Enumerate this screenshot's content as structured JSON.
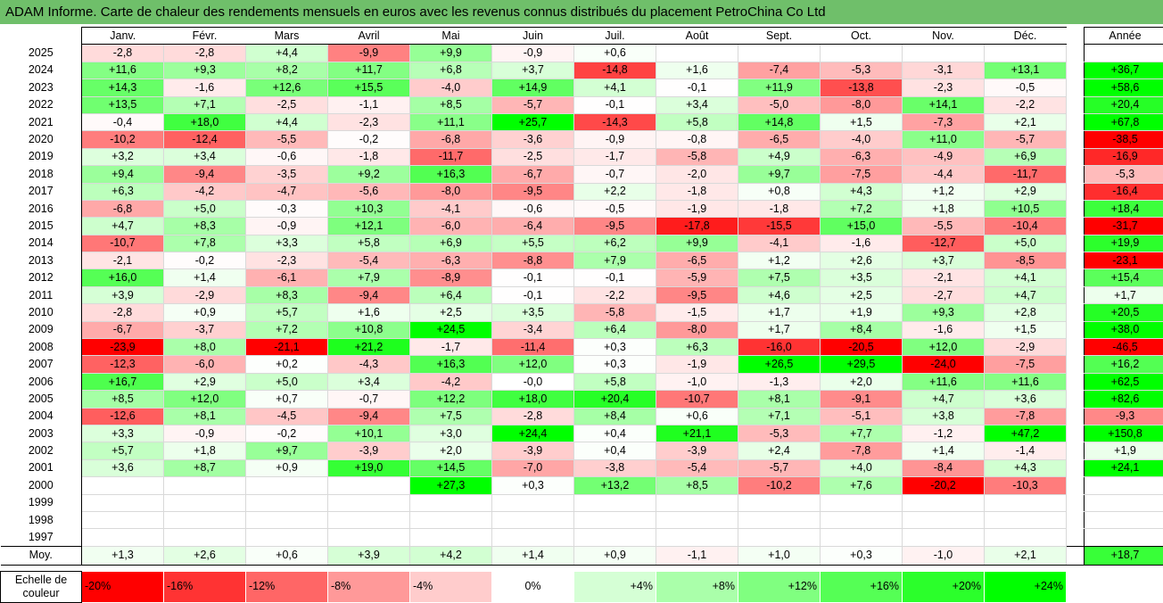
{
  "title": "ADAM Informe. Carte de chaleur des rendements mensuels en euros avec les revenus connus distribués du placement PetroChina Co Ltd",
  "chart_data": {
    "type": "heatmap",
    "title": "ADAM Informe. Carte de chaleur des rendements mensuels en euros avec les revenus connus distribués du placement PetroChina Co Ltd",
    "columns": [
      "Janv.",
      "Févr.",
      "Mars",
      "Avril",
      "Mai",
      "Juin",
      "Juil.",
      "Août",
      "Sept.",
      "Oct.",
      "Nov.",
      "Déc."
    ],
    "annual_label": "Année",
    "rows": [
      {
        "year": "2025",
        "values": [
          "-2,8",
          "-2,8",
          "+4,4",
          "-9,9",
          "+9,9",
          "-0,9",
          "+0,6",
          "",
          "",
          "",
          "",
          ""
        ],
        "annual": ""
      },
      {
        "year": "2024",
        "values": [
          "+11,6",
          "+9,3",
          "+8,2",
          "+11,7",
          "+6,8",
          "+3,7",
          "-14,8",
          "+1,6",
          "-7,4",
          "-5,3",
          "-3,1",
          "+13,1"
        ],
        "annual": "+36,7"
      },
      {
        "year": "2023",
        "values": [
          "+14,3",
          "-1,6",
          "+12,6",
          "+15,5",
          "-4,0",
          "+14,9",
          "+4,1",
          "-0,1",
          "+11,9",
          "-13,8",
          "-2,3",
          "-0,5"
        ],
        "annual": "+58,6"
      },
      {
        "year": "2022",
        "values": [
          "+13,5",
          "+7,1",
          "-2,5",
          "-1,1",
          "+8,5",
          "-5,7",
          "-0,1",
          "+3,4",
          "-5,0",
          "-8,0",
          "+14,1",
          "-2,2"
        ],
        "annual": "+20,4"
      },
      {
        "year": "2021",
        "values": [
          "-0,4",
          "+18,0",
          "+4,4",
          "-2,3",
          "+11,1",
          "+25,7",
          "-14,3",
          "+5,8",
          "+14,8",
          "+1,5",
          "-7,3",
          "+2,1"
        ],
        "annual": "+67,8"
      },
      {
        "year": "2020",
        "values": [
          "-10,2",
          "-12,4",
          "-5,5",
          "-0,2",
          "-6,8",
          "-3,6",
          "-0,9",
          "-0,8",
          "-6,5",
          "-4,0",
          "+11,0",
          "-5,7"
        ],
        "annual": "-38,5"
      },
      {
        "year": "2019",
        "values": [
          "+3,2",
          "+3,4",
          "-0,6",
          "-1,8",
          "-11,7",
          "-2,5",
          "-1,7",
          "-5,8",
          "+4,9",
          "-6,3",
          "-4,9",
          "+6,9"
        ],
        "annual": "-16,9"
      },
      {
        "year": "2018",
        "values": [
          "+9,4",
          "-9,4",
          "-3,5",
          "+9,2",
          "+16,3",
          "-6,7",
          "-0,7",
          "-2,0",
          "+9,7",
          "-7,5",
          "-4,4",
          "-11,7"
        ],
        "annual": "-5,3"
      },
      {
        "year": "2017",
        "values": [
          "+6,3",
          "-4,2",
          "-4,7",
          "-5,6",
          "-8,0",
          "-9,5",
          "+2,2",
          "-1,8",
          "+0,8",
          "+4,3",
          "+1,2",
          "+2,9"
        ],
        "annual": "-16,4"
      },
      {
        "year": "2016",
        "values": [
          "-6,8",
          "+5,0",
          "-0,3",
          "+10,3",
          "-4,1",
          "-0,6",
          "-0,5",
          "-1,9",
          "-1,8",
          "+7,2",
          "+1,8",
          "+10,5"
        ],
        "annual": "+18,4"
      },
      {
        "year": "2015",
        "values": [
          "+4,7",
          "+8,3",
          "-0,9",
          "+12,1",
          "-6,0",
          "-6,4",
          "-9,5",
          "-17,8",
          "-15,5",
          "+15,0",
          "-5,5",
          "-10,4"
        ],
        "annual": "-31,7"
      },
      {
        "year": "2014",
        "values": [
          "-10,7",
          "+7,8",
          "+3,3",
          "+5,8",
          "+6,9",
          "+5,5",
          "+6,2",
          "+9,9",
          "-4,1",
          "-1,6",
          "-12,7",
          "+5,0"
        ],
        "annual": "+19,9"
      },
      {
        "year": "2013",
        "values": [
          "-2,1",
          "-0,2",
          "-2,3",
          "-5,4",
          "-6,3",
          "-8,8",
          "+7,9",
          "-6,5",
          "+1,2",
          "+2,6",
          "+3,7",
          "-8,5"
        ],
        "annual": "-23,1"
      },
      {
        "year": "2012",
        "values": [
          "+16,0",
          "+1,4",
          "-6,1",
          "+7,9",
          "-8,9",
          "-0,1",
          "-0,1",
          "-5,9",
          "+7,5",
          "+3,5",
          "-2,1",
          "+4,1"
        ],
        "annual": "+15,4"
      },
      {
        "year": "2011",
        "values": [
          "+3,9",
          "-2,9",
          "+8,3",
          "-9,4",
          "+6,4",
          "-0,1",
          "-2,2",
          "-9,5",
          "+4,6",
          "+2,5",
          "-2,7",
          "+4,7"
        ],
        "annual": "+1,7"
      },
      {
        "year": "2010",
        "values": [
          "-2,8",
          "+0,9",
          "+5,7",
          "+1,6",
          "+2,5",
          "+3,5",
          "-5,8",
          "-1,5",
          "+1,7",
          "+1,9",
          "+9,3",
          "+2,8"
        ],
        "annual": "+20,5"
      },
      {
        "year": "2009",
        "values": [
          "-6,7",
          "-3,7",
          "+7,2",
          "+10,8",
          "+24,5",
          "-3,4",
          "+6,4",
          "-8,0",
          "+1,7",
          "+8,4",
          "-1,6",
          "+1,5"
        ],
        "annual": "+38,0"
      },
      {
        "year": "2008",
        "values": [
          "-23,9",
          "+8,0",
          "-21,1",
          "+21,2",
          "-1,7",
          "-11,4",
          "+0,3",
          "+6,3",
          "-16,0",
          "-20,5",
          "+12,0",
          "-2,9"
        ],
        "annual": "-46,5"
      },
      {
        "year": "2007",
        "values": [
          "-12,3",
          "-6,0",
          "+0,2",
          "-4,3",
          "+16,3",
          "+12,0",
          "+0,3",
          "-1,9",
          "+26,5",
          "+29,5",
          "-24,0",
          "-7,5"
        ],
        "annual": "+16,2"
      },
      {
        "year": "2006",
        "values": [
          "+16,7",
          "+2,9",
          "+5,0",
          "+3,4",
          "-4,2",
          "-0,0",
          "+5,8",
          "-1,0",
          "-1,3",
          "+2,0",
          "+11,6",
          "+11,6"
        ],
        "annual": "+62,5"
      },
      {
        "year": "2005",
        "values": [
          "+8,5",
          "+12,0",
          "+0,7",
          "-0,7",
          "+12,2",
          "+18,0",
          "+20,4",
          "-10,7",
          "+8,1",
          "-9,1",
          "+4,7",
          "+3,6"
        ],
        "annual": "+82,6"
      },
      {
        "year": "2004",
        "values": [
          "-12,6",
          "+8,1",
          "-4,5",
          "-9,4",
          "+7,5",
          "-2,8",
          "+8,4",
          "+0,6",
          "+7,1",
          "-5,1",
          "+3,8",
          "-7,8"
        ],
        "annual": "-9,3"
      },
      {
        "year": "2003",
        "values": [
          "+3,3",
          "-0,9",
          "-0,2",
          "+10,1",
          "+3,0",
          "+24,4",
          "+0,4",
          "+21,1",
          "-5,3",
          "+7,7",
          "-1,2",
          "+47,2"
        ],
        "annual": "+150,8"
      },
      {
        "year": "2002",
        "values": [
          "+5,7",
          "+1,8",
          "+9,7",
          "-3,9",
          "+2,0",
          "-3,9",
          "+0,4",
          "-3,9",
          "+2,4",
          "-7,8",
          "+1,4",
          "-1,4"
        ],
        "annual": "+1,9"
      },
      {
        "year": "2001",
        "values": [
          "+3,6",
          "+8,7",
          "+0,9",
          "+19,0",
          "+14,5",
          "-7,0",
          "-3,8",
          "-5,4",
          "-5,7",
          "+4,0",
          "-8,4",
          "+4,3"
        ],
        "annual": "+24,1"
      },
      {
        "year": "2000",
        "values": [
          "",
          "",
          "",
          "",
          "+27,3",
          "+0,3",
          "+13,2",
          "+8,5",
          "-10,2",
          "+7,6",
          "-20,2",
          "-10,3"
        ],
        "annual": ""
      },
      {
        "year": "1999",
        "values": [
          "",
          "",
          "",
          "",
          "",
          "",
          "",
          "",
          "",
          "",
          "",
          ""
        ],
        "annual": ""
      },
      {
        "year": "1998",
        "values": [
          "",
          "",
          "",
          "",
          "",
          "",
          "",
          "",
          "",
          "",
          "",
          ""
        ],
        "annual": ""
      },
      {
        "year": "1997",
        "values": [
          "",
          "",
          "",
          "",
          "",
          "",
          "",
          "",
          "",
          "",
          "",
          ""
        ],
        "annual": ""
      }
    ],
    "average": {
      "label": "Moy.",
      "values": [
        "+1,3",
        "+2,6",
        "+0,6",
        "+3,9",
        "+4,2",
        "+1,4",
        "+0,9",
        "-1,1",
        "+1,0",
        "+0,3",
        "-1,0",
        "+2,1"
      ],
      "annual": "+18,7"
    },
    "color_scale": {
      "label": "Echelle de couleur",
      "stops": [
        "-20%",
        "-16%",
        "-12%",
        "-8%",
        "-4%",
        "0%",
        "+4%",
        "+8%",
        "+12%",
        "+16%",
        "+20%",
        "+24%"
      ],
      "stop_values": [
        -20,
        -16,
        -12,
        -8,
        -4,
        0,
        4,
        8,
        12,
        16,
        20,
        24
      ],
      "negative_color": "#ff0000",
      "positive_color": "#00ff00",
      "neutral_color": "#ffffff"
    }
  }
}
